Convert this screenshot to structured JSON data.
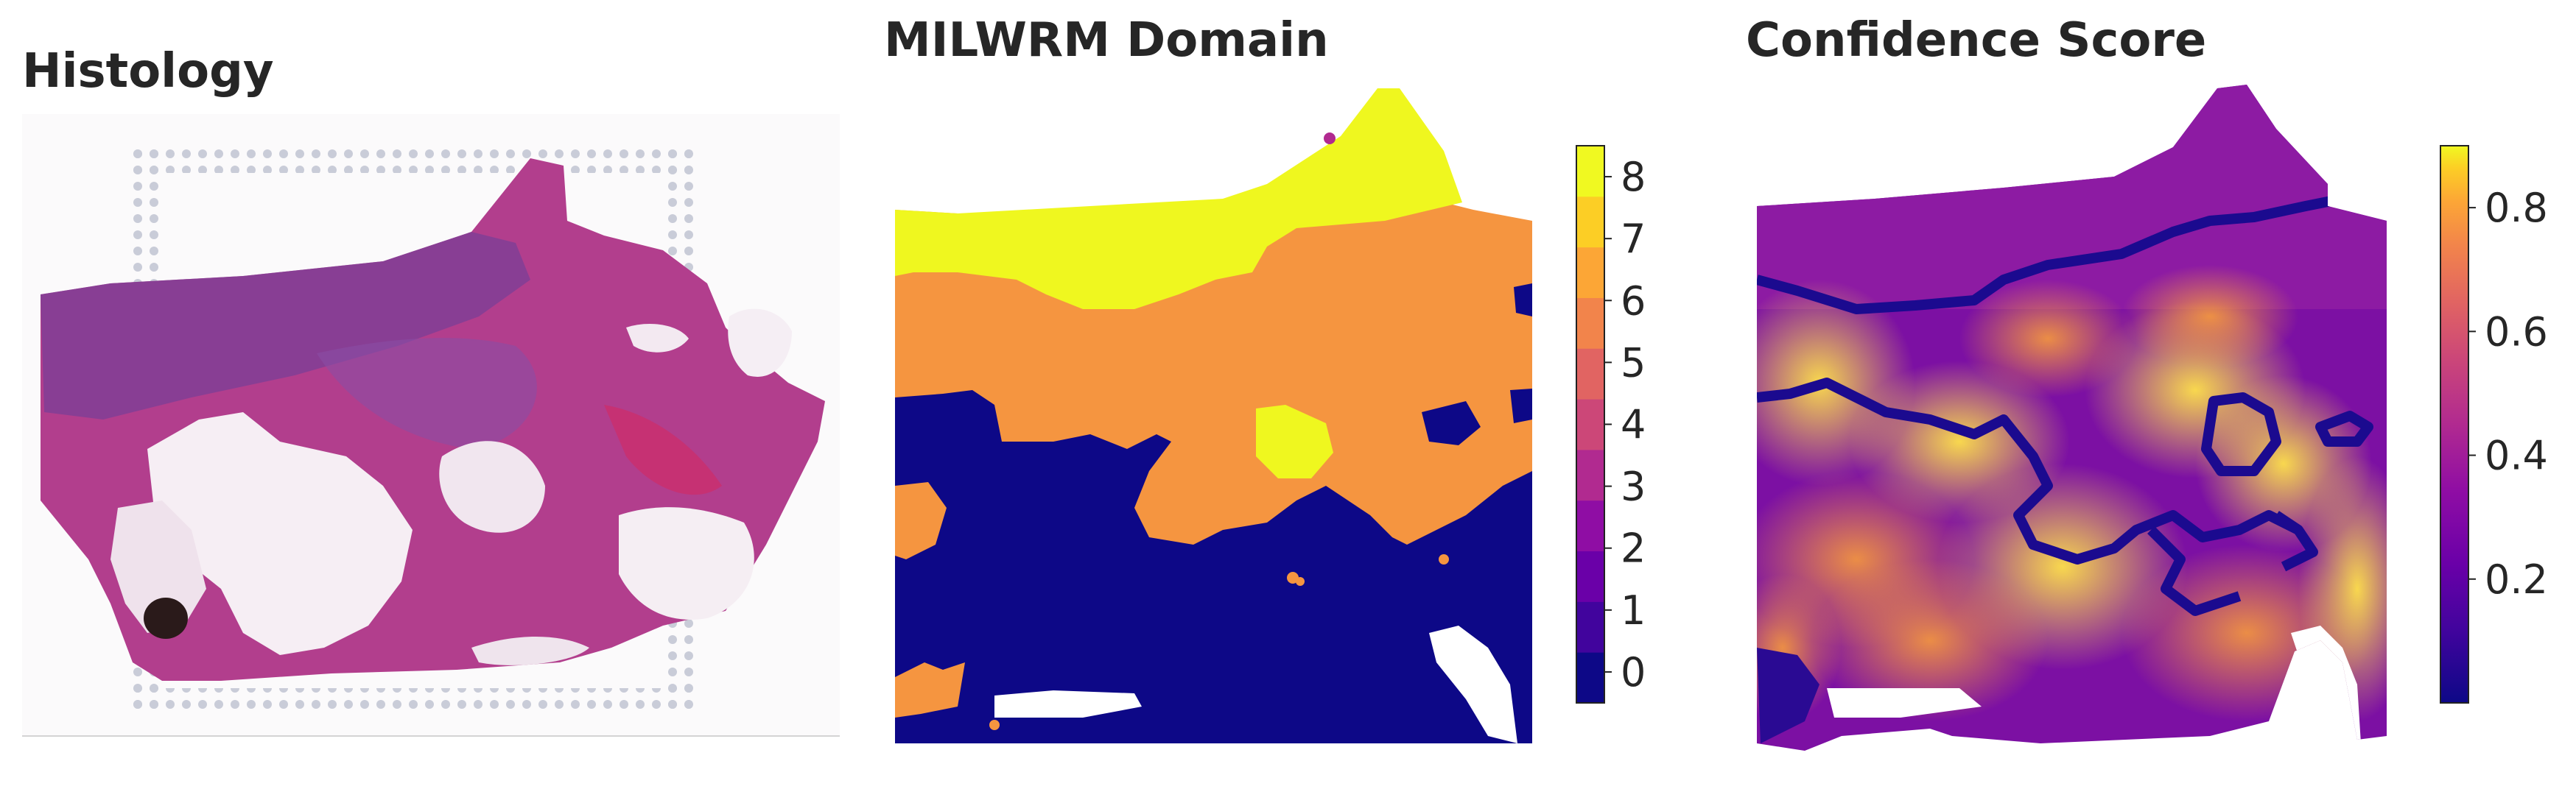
{
  "chart_data": [
    {
      "type": "image",
      "title": "Histology",
      "description_elements": [
        "H&E tissue section",
        "fiducial spot frame"
      ]
    },
    {
      "type": "heatmap",
      "title": "MILWRM Domain",
      "colorbar": {
        "kind": "discrete",
        "ticks": [
          0,
          1,
          2,
          3,
          4,
          5,
          6,
          7,
          8
        ],
        "colors": [
          "#0d0887",
          "#41049d",
          "#6a00a8",
          "#8f0da4",
          "#b12a90",
          "#cc4778",
          "#e16462",
          "#f2844b",
          "#fca636",
          "#fcce25",
          "#f0f921"
        ]
      },
      "domains_present": [
        0,
        6,
        8
      ],
      "domain_colors": {
        "0": "#0d0887",
        "6": "#f59540",
        "8": "#eff71f"
      }
    },
    {
      "type": "heatmap",
      "title": "Confidence Score",
      "colorbar": {
        "kind": "continuous",
        "colormap": "plasma",
        "ticks": [
          0.2,
          0.4,
          0.6,
          0.8
        ],
        "tick_labels": [
          "0.2",
          "0.4",
          "0.6",
          "0.8"
        ],
        "vmin": 0.0,
        "vmax": 0.9
      }
    }
  ]
}
